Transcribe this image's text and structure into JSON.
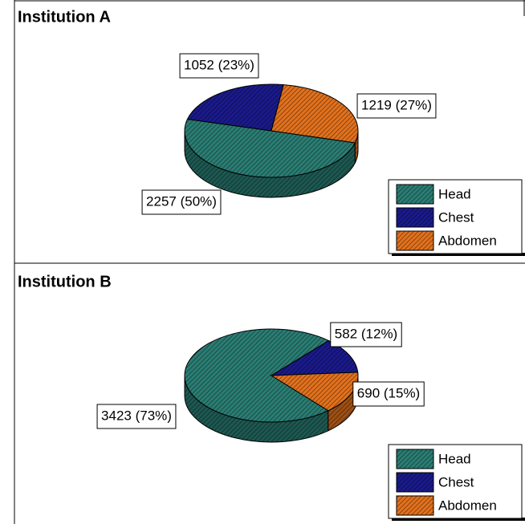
{
  "chart_data": [
    {
      "type": "pie",
      "title": "Institution A",
      "categories": [
        "Head",
        "Chest",
        "Abdomen"
      ],
      "values": [
        2257,
        1052,
        1219
      ],
      "value_labels": [
        "2257 (50%)",
        "1052 (23%)",
        "1219 (27%)"
      ],
      "colors": [
        "#2a7d73",
        "#1a1a8c",
        "#e2711d"
      ],
      "legend": "lower right"
    },
    {
      "type": "pie",
      "title": "Institution B",
      "categories": [
        "Head",
        "Chest",
        "Abdomen"
      ],
      "values": [
        3423,
        582,
        690
      ],
      "value_labels": [
        "3423 (73%)",
        "582 (12%)",
        "690 (15%)"
      ],
      "colors": [
        "#2a7d73",
        "#1a1a8c",
        "#e2711d"
      ],
      "legend": "lower right"
    }
  ]
}
